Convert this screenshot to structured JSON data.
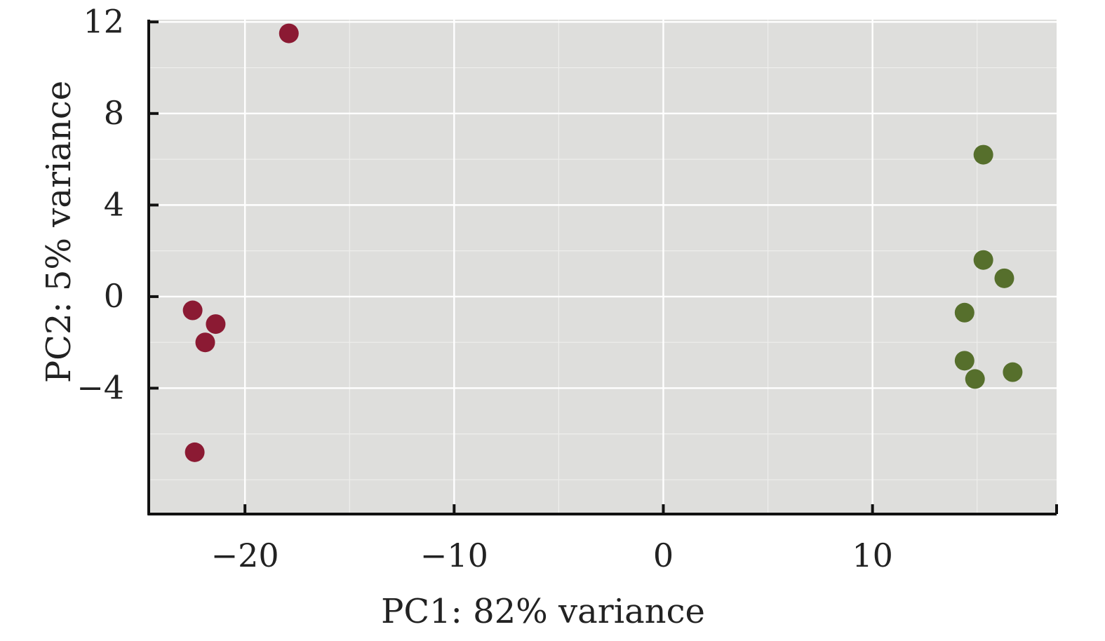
{
  "chart_data": {
    "type": "scatter",
    "title": "",
    "xlabel": "PC1: 82% variance",
    "ylabel": "PC2: 5% variance",
    "xlim": [
      -24.6,
      18.8
    ],
    "ylim": [
      -9.5,
      12.1
    ],
    "xticks": [
      -20,
      -10,
      0,
      10
    ],
    "xtick_labels": [
      "−20",
      "−10",
      "0",
      "10"
    ],
    "yticks": [
      -4,
      0,
      4,
      8,
      12
    ],
    "ytick_labels": [
      "−4",
      "0",
      "4",
      "8",
      "12"
    ],
    "grid": true,
    "legend": "none",
    "background_color": "#dededc",
    "series": [
      {
        "color": "#8b1a33",
        "x": [
          -17.9,
          -22.5,
          -21.4,
          -21.9,
          -22.4
        ],
        "y": [
          11.5,
          -0.6,
          -1.2,
          -2.0,
          -6.8
        ]
      },
      {
        "color": "#566f2c",
        "x": [
          15.3,
          15.3,
          16.3,
          14.4,
          14.4,
          14.9,
          16.7
        ],
        "y": [
          6.2,
          1.6,
          0.8,
          -0.7,
          -2.8,
          -3.6,
          -3.3
        ]
      }
    ]
  }
}
